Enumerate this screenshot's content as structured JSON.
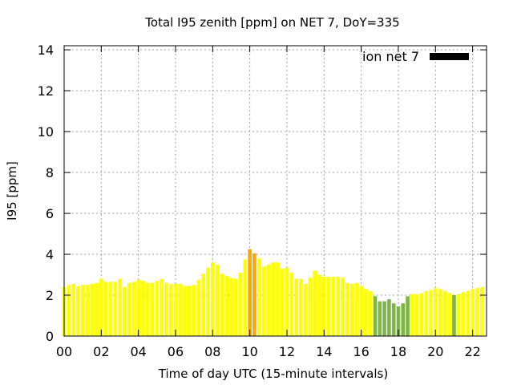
{
  "chart_data": {
    "type": "bar",
    "title": "Total I95 zenith [ppm] on NET 7, DoY=335",
    "xlabel": "Time of day UTC (15-minute intervals)",
    "ylabel": "I95 [ppm]",
    "xlim": [
      0,
      22.75
    ],
    "ylim": [
      0,
      14.2
    ],
    "xticks": [
      "00",
      "02",
      "04",
      "06",
      "08",
      "10",
      "12",
      "14",
      "16",
      "18",
      "20",
      "22"
    ],
    "yticks": [
      "0",
      "2",
      "4",
      "6",
      "8",
      "10",
      "12",
      "14"
    ],
    "grid": true,
    "legend": {
      "label": "ion net 7",
      "color": "#000000",
      "position": "top-right"
    },
    "bar_width_hours": 0.2,
    "colors": {
      "low": "#7fb446",
      "normal": "#ffff00",
      "elevated": "#ffa500",
      "frame": "#000000"
    },
    "series": [
      {
        "name": "ion net 7",
        "x": [
          0.0,
          0.25,
          0.5,
          0.75,
          1.0,
          1.25,
          1.5,
          1.75,
          2.0,
          2.25,
          2.5,
          2.75,
          3.0,
          3.25,
          3.5,
          3.75,
          4.0,
          4.25,
          4.5,
          4.75,
          5.0,
          5.25,
          5.5,
          5.75,
          6.0,
          6.25,
          6.5,
          6.75,
          7.0,
          7.25,
          7.5,
          7.75,
          8.0,
          8.25,
          8.5,
          8.75,
          9.0,
          9.25,
          9.5,
          9.75,
          10.0,
          10.25,
          10.5,
          10.75,
          11.0,
          11.25,
          11.5,
          11.75,
          12.0,
          12.25,
          12.5,
          12.75,
          13.0,
          13.25,
          13.5,
          13.75,
          14.0,
          14.25,
          14.5,
          14.75,
          15.0,
          15.25,
          15.5,
          15.75,
          16.0,
          16.25,
          16.5,
          16.75,
          17.0,
          17.25,
          17.5,
          17.75,
          18.0,
          18.25,
          18.5,
          18.75,
          19.0,
          19.25,
          19.5,
          19.75,
          20.0,
          20.25,
          20.5,
          20.75,
          21.0,
          21.25,
          21.5,
          21.75,
          22.0,
          22.25,
          22.5
        ],
        "values": [
          2.4,
          2.5,
          2.55,
          2.45,
          2.5,
          2.5,
          2.55,
          2.6,
          2.8,
          2.65,
          2.65,
          2.65,
          2.8,
          2.4,
          2.6,
          2.65,
          2.75,
          2.7,
          2.6,
          2.6,
          2.7,
          2.8,
          2.6,
          2.55,
          2.55,
          2.55,
          2.45,
          2.45,
          2.5,
          2.75,
          3.05,
          3.35,
          3.6,
          3.5,
          3.05,
          2.95,
          2.85,
          2.8,
          3.1,
          3.75,
          4.25,
          4.05,
          3.8,
          3.4,
          3.5,
          3.6,
          3.6,
          3.3,
          3.35,
          3.1,
          2.8,
          2.8,
          2.55,
          2.85,
          3.2,
          3.0,
          2.9,
          2.9,
          2.9,
          2.9,
          2.85,
          2.6,
          2.55,
          2.6,
          2.45,
          2.3,
          2.2,
          1.95,
          1.7,
          1.7,
          1.8,
          1.6,
          1.45,
          1.6,
          1.95,
          2.05,
          2.05,
          2.1,
          2.2,
          2.25,
          2.35,
          2.3,
          2.2,
          2.1,
          2.0,
          2.05,
          2.15,
          2.2,
          2.3,
          2.35,
          2.4
        ],
        "colors": [
          "#ffff00",
          "#ffff00",
          "#ffff00",
          "#ffff00",
          "#ffff00",
          "#ffff00",
          "#ffff00",
          "#ffff00",
          "#ffff00",
          "#ffff00",
          "#ffff00",
          "#ffff00",
          "#ffff00",
          "#ffff00",
          "#ffff00",
          "#ffff00",
          "#ffff00",
          "#ffff00",
          "#ffff00",
          "#ffff00",
          "#ffff00",
          "#ffff00",
          "#ffff00",
          "#ffff00",
          "#ffff00",
          "#ffff00",
          "#ffff00",
          "#ffff00",
          "#ffff00",
          "#ffff00",
          "#ffff00",
          "#ffff00",
          "#ffff00",
          "#ffff00",
          "#ffff00",
          "#ffff00",
          "#ffff00",
          "#ffff00",
          "#ffff00",
          "#ffff00",
          "#ffa500",
          "#ffa500",
          "#ffff00",
          "#ffff00",
          "#ffff00",
          "#ffff00",
          "#ffff00",
          "#ffff00",
          "#ffff00",
          "#ffff00",
          "#ffff00",
          "#ffff00",
          "#ffff00",
          "#ffff00",
          "#ffff00",
          "#ffff00",
          "#ffff00",
          "#ffff00",
          "#ffff00",
          "#ffff00",
          "#ffff00",
          "#ffff00",
          "#ffff00",
          "#ffff00",
          "#ffff00",
          "#ffff00",
          "#ffff00",
          "#7fb446",
          "#7fb446",
          "#7fb446",
          "#7fb446",
          "#7fb446",
          "#7fb446",
          "#7fb446",
          "#7fb446",
          "#ffff00",
          "#ffff00",
          "#ffff00",
          "#ffff00",
          "#ffff00",
          "#ffff00",
          "#ffff00",
          "#ffff00",
          "#ffff00",
          "#7fb446",
          "#ffff00",
          "#ffff00",
          "#ffff00",
          "#ffff00",
          "#ffff00",
          "#ffff00"
        ]
      }
    ]
  }
}
